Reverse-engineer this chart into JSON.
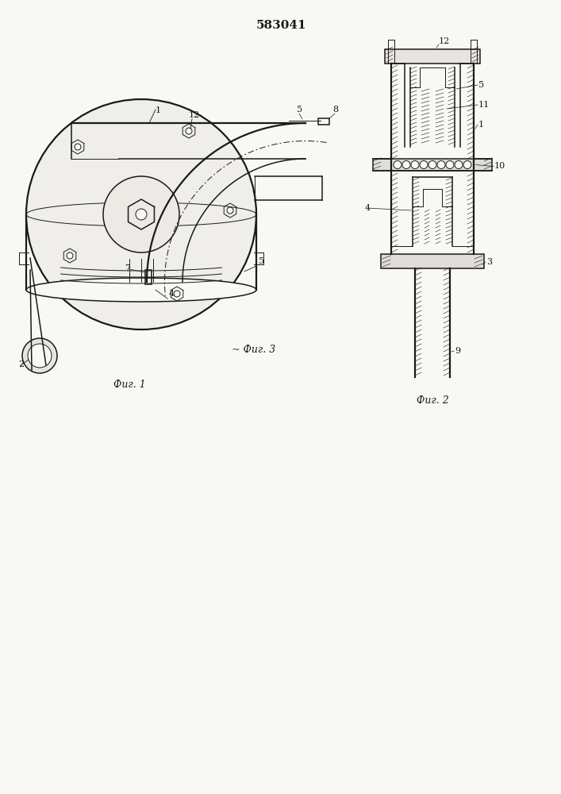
{
  "title": "583041",
  "bg_color": "#f8f8f5",
  "line_color": "#1a1a1a",
  "hatch_color": "#333333",
  "fig1_label": "Фиг. 1",
  "fig2_label": "Фиг. 2",
  "fig3_label": "~ Фиг. 3"
}
